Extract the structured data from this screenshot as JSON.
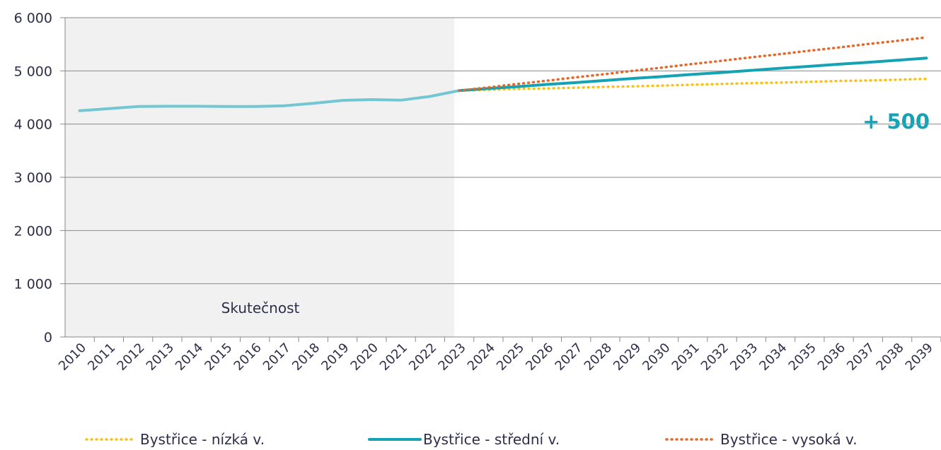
{
  "chart_data": {
    "type": "line",
    "categories": [
      "2010",
      "2011",
      "2012",
      "2013",
      "2014",
      "2015",
      "2016",
      "2017",
      "2018",
      "2019",
      "2020",
      "2021",
      "2022",
      "2023",
      "2024",
      "2025",
      "2026",
      "2027",
      "2028",
      "2029",
      "2030",
      "2031",
      "2032",
      "2033",
      "2034",
      "2035",
      "2036",
      "2037",
      "2038",
      "2039"
    ],
    "series": [
      {
        "color": "#72c7d3",
        "values": [
          4250,
          4290,
          4330,
          4335,
          4335,
          4330,
          4330,
          4345,
          4390,
          4445,
          4460,
          4450,
          4520,
          4630,
          null,
          null,
          null,
          null,
          null,
          null,
          null,
          null,
          null,
          null,
          null,
          null,
          null,
          null,
          null,
          null
        ]
      },
      {
        "name": "Bystřice - nízká v.",
        "color": "#f7c31a",
        "dash": "dotted",
        "values": [
          null,
          null,
          null,
          null,
          null,
          null,
          null,
          null,
          null,
          null,
          null,
          null,
          null,
          4630,
          4645,
          4660,
          4670,
          4685,
          4700,
          4710,
          4725,
          4740,
          4755,
          4770,
          4780,
          4795,
          4810,
          4820,
          4835,
          4850
        ]
      },
      {
        "name": "Bystřice - střední v.",
        "color": "#13a3b5",
        "dash": "solid",
        "values": [
          null,
          null,
          null,
          null,
          null,
          null,
          null,
          null,
          null,
          null,
          null,
          null,
          null,
          4630,
          4670,
          4705,
          4745,
          4780,
          4820,
          4860,
          4895,
          4935,
          4970,
          5010,
          5050,
          5085,
          5125,
          5160,
          5200,
          5240
        ]
      },
      {
        "name": "Bystřice - vysoká v.",
        "color": "#e5682a",
        "dash": "dotted",
        "values": [
          null,
          null,
          null,
          null,
          null,
          null,
          null,
          null,
          null,
          null,
          null,
          null,
          null,
          4630,
          4690,
          4755,
          4815,
          4880,
          4940,
          5005,
          5065,
          5130,
          5190,
          5255,
          5315,
          5380,
          5440,
          5505,
          5565,
          5630
        ]
      }
    ],
    "ylim": [
      0,
      6000
    ],
    "yticks": [
      0,
      {
        "value": 1000,
        "label": "1 000"
      },
      {
        "value": 2000,
        "label": "2 000"
      },
      {
        "value": 3000,
        "label": "3 000"
      },
      {
        "value": 4000,
        "label": "4 000"
      },
      {
        "value": 5000,
        "label": "5 000"
      },
      {
        "value": 6000,
        "label": "6 000"
      }
    ],
    "grid": true,
    "annotations": [
      "Skutečnost",
      "+ 500"
    ],
    "legend": "bottom"
  }
}
